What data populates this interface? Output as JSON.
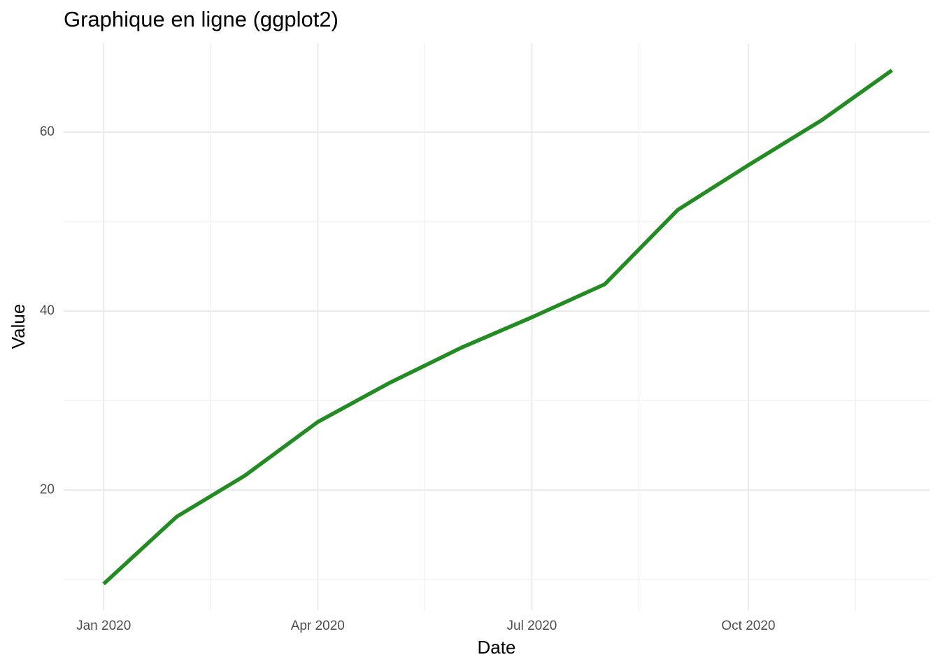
{
  "chart_data": {
    "type": "line",
    "title": "Graphique en ligne (ggplot2)",
    "x_label": "Date",
    "y_label": "Value",
    "x": [
      "2020-01",
      "2020-02",
      "2020-03",
      "2020-04",
      "2020-05",
      "2020-06",
      "2020-07",
      "2020-08",
      "2020-09",
      "2020-10",
      "2020-11",
      "2020-12"
    ],
    "series": [
      {
        "name": "Value",
        "color": "#228B22",
        "values": [
          9.5,
          17.0,
          21.6,
          27.6,
          31.9,
          35.9,
          39.3,
          43.0,
          51.3,
          56.3,
          61.3,
          66.9
        ]
      }
    ],
    "xlim": [
      "2019-12-15",
      "2020-12-17"
    ],
    "xticks": [
      {
        "value": "2020-01",
        "label": "Jan 2020"
      },
      {
        "value": "2020-04",
        "label": "Apr 2020"
      },
      {
        "value": "2020-07",
        "label": "Jul 2020"
      },
      {
        "value": "2020-10",
        "label": "Oct 2020"
      }
    ],
    "ylim": [
      6.56,
      69.92
    ],
    "yticks": [
      20,
      40,
      60
    ],
    "grid": true
  }
}
